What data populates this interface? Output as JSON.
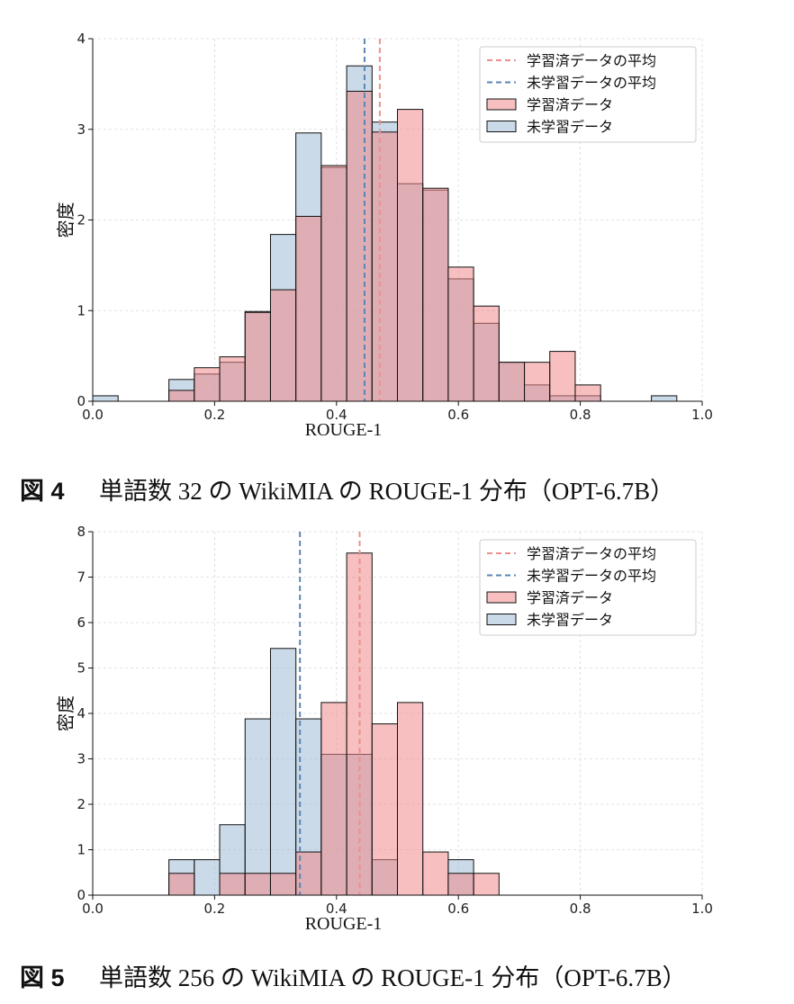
{
  "colors": {
    "trained": "#f08a8a",
    "untrained": "#a9c1da",
    "trained_mean": "#ee8f8f",
    "untrained_mean": "#5b86b5"
  },
  "chart_data": [
    {
      "type": "bar",
      "xlabel": "ROUGE-1",
      "ylabel": "密度",
      "xlim": [
        0.0,
        1.0
      ],
      "ylim": [
        0,
        4
      ],
      "xticks": [
        "0.0",
        "0.2",
        "0.4",
        "0.6",
        "0.8",
        "1.0"
      ],
      "yticks": [
        "0",
        "1",
        "2",
        "3",
        "4"
      ],
      "grid": true,
      "legend_position": "top-right",
      "legend": [
        "学習済データの平均",
        "未学習データの平均",
        "学習済データ",
        "未学習データ"
      ],
      "bin_width": 0.04167,
      "trained": {
        "name": "学習済データ",
        "bins": [
          0.125,
          0.1667,
          0.2083,
          0.25,
          0.2917,
          0.3333,
          0.375,
          0.4167,
          0.4583,
          0.5,
          0.5417,
          0.5833,
          0.625,
          0.6667,
          0.7083,
          0.75,
          0.7917
        ],
        "values": [
          0.12,
          0.37,
          0.49,
          0.98,
          1.23,
          2.04,
          2.6,
          3.42,
          2.97,
          3.22,
          2.35,
          1.48,
          1.05,
          0.43,
          0.43,
          0.55,
          0.18
        ]
      },
      "untrained": {
        "name": "未学習データ",
        "bins": [
          0.0,
          0.125,
          0.1667,
          0.2083,
          0.25,
          0.2917,
          0.3333,
          0.375,
          0.4167,
          0.4583,
          0.5,
          0.5417,
          0.5833,
          0.625,
          0.6667,
          0.7083,
          0.75,
          0.7917,
          0.9167
        ],
        "values": [
          0.06,
          0.24,
          0.3,
          0.43,
          0.99,
          1.84,
          2.96,
          2.58,
          3.7,
          3.08,
          2.4,
          2.33,
          1.35,
          0.86,
          0.43,
          0.18,
          0.06,
          0.06,
          0.06
        ]
      },
      "trained_mean": 0.471,
      "untrained_mean": 0.446
    },
    {
      "type": "bar",
      "xlabel": "ROUGE-1",
      "ylabel": "密度",
      "xlim": [
        0.0,
        1.0
      ],
      "ylim": [
        0,
        8
      ],
      "xticks": [
        "0.0",
        "0.2",
        "0.4",
        "0.6",
        "0.8",
        "1.0"
      ],
      "yticks": [
        "0",
        "1",
        "2",
        "3",
        "4",
        "5",
        "6",
        "7",
        "8"
      ],
      "grid": true,
      "legend_position": "top-right",
      "legend": [
        "学習済データの平均",
        "未学習データの平均",
        "学習済データ",
        "未学習データ"
      ],
      "bin_width": 0.04167,
      "trained": {
        "name": "学習済データ",
        "bins": [
          0.125,
          0.1667,
          0.2083,
          0.25,
          0.2917,
          0.3333,
          0.375,
          0.4167,
          0.4583,
          0.5,
          0.5417,
          0.5833,
          0.625
        ],
        "values": [
          0.48,
          0.0,
          0.48,
          0.48,
          0.48,
          0.95,
          4.24,
          7.53,
          3.77,
          4.24,
          0.95,
          0.48,
          0.48
        ]
      },
      "untrained": {
        "name": "未学習データ",
        "bins": [
          0.125,
          0.1667,
          0.2083,
          0.25,
          0.2917,
          0.3333,
          0.375,
          0.4167,
          0.4583,
          0.5,
          0.5417,
          0.5833
        ],
        "values": [
          0.78,
          0.78,
          1.55,
          3.88,
          5.43,
          3.88,
          3.1,
          3.1,
          0.78,
          0.0,
          0.0,
          0.78
        ]
      },
      "trained_mean": 0.438,
      "untrained_mean": 0.34
    }
  ],
  "captions": [
    {
      "num": "図 4",
      "text": "単語数 32 の WikiMIA の ROUGE-1 分布（OPT-6.7B）"
    },
    {
      "num": "図 5",
      "text": "単語数 256 の WikiMIA の ROUGE-1 分布（OPT-6.7B）"
    }
  ]
}
